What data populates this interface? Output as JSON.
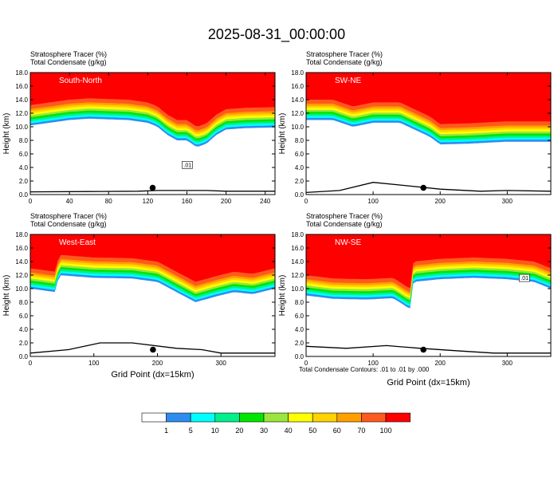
{
  "title": "2025-08-31_00:00:00",
  "panel_header": {
    "line1": "Stratosphere Tracer   (%)",
    "line2": "Total Condensate   (g/kg)"
  },
  "ylabel": "Height (km)",
  "xlabel": "Grid Point (dx=15km)",
  "contour_note": "Total Condensate Contours: .01 to .01 by .000",
  "colorbar": {
    "colors": [
      "#ffffff",
      "#2d8cf0",
      "#00ffff",
      "#00f08c",
      "#00e600",
      "#9be63c",
      "#ffff00",
      "#ffd200",
      "#ffa000",
      "#ff5a1e",
      "#ff0000"
    ],
    "labels": [
      "1",
      "5",
      "10",
      "20",
      "30",
      "40",
      "50",
      "60",
      "70",
      "100"
    ]
  },
  "chart_data": [
    {
      "type": "heatmap",
      "panel": "South-North",
      "label": "South-North",
      "xlim": [
        0,
        250
      ],
      "ylim": [
        0,
        18
      ],
      "xticks": [
        "0",
        "40",
        "80",
        "120",
        "160",
        "200",
        "240"
      ],
      "yticks": [
        "0.0",
        "2.0",
        "4.0",
        "6.0",
        "8.0",
        "10.0",
        "12.0",
        "14.0",
        "16.0",
        "18.0"
      ],
      "tracer_boundary_km": [
        [
          0,
          13.2
        ],
        [
          20,
          13.6
        ],
        [
          40,
          14.0
        ],
        [
          60,
          14.2
        ],
        [
          80,
          14.1
        ],
        [
          100,
          14.0
        ],
        [
          120,
          13.6
        ],
        [
          130,
          13.0
        ],
        [
          140,
          11.8
        ],
        [
          150,
          11.0
        ],
        [
          160,
          11.0
        ],
        [
          170,
          10.0
        ],
        [
          180,
          10.5
        ],
        [
          190,
          11.8
        ],
        [
          200,
          12.6
        ],
        [
          220,
          12.8
        ],
        [
          250,
          12.9
        ]
      ],
      "terrain_km": [
        [
          0,
          0.4
        ],
        [
          60,
          0.45
        ],
        [
          110,
          0.5
        ],
        [
          130,
          0.6
        ],
        [
          150,
          0.6
        ],
        [
          180,
          0.6
        ],
        [
          200,
          0.5
        ],
        [
          250,
          0.5
        ]
      ],
      "marker": {
        "x": 125,
        "y": 1.0
      },
      "contour_label": ".01"
    },
    {
      "type": "heatmap",
      "panel": "SW-NE",
      "label": "SW-NE",
      "xlim": [
        0,
        365
      ],
      "ylim": [
        0,
        18
      ],
      "xticks": [
        "0",
        "100",
        "200",
        "300"
      ],
      "yticks": [
        "0.0",
        "2.0",
        "4.0",
        "6.0",
        "8.0",
        "10.0",
        "12.0",
        "14.0",
        "16.0",
        "18.0"
      ],
      "tracer_boundary_km": [
        [
          0,
          14.0
        ],
        [
          40,
          14.0
        ],
        [
          70,
          13.0
        ],
        [
          100,
          13.6
        ],
        [
          140,
          13.6
        ],
        [
          170,
          12.2
        ],
        [
          185,
          11.5
        ],
        [
          200,
          10.4
        ],
        [
          240,
          10.5
        ],
        [
          300,
          10.8
        ],
        [
          365,
          10.8
        ]
      ],
      "terrain_km": [
        [
          0,
          0.3
        ],
        [
          50,
          0.6
        ],
        [
          100,
          1.8
        ],
        [
          150,
          1.3
        ],
        [
          200,
          0.8
        ],
        [
          260,
          0.5
        ],
        [
          300,
          0.6
        ],
        [
          365,
          0.5
        ]
      ],
      "marker": {
        "x": 175,
        "y": 1.0
      }
    },
    {
      "type": "heatmap",
      "panel": "West-East",
      "label": "West-East",
      "xlim": [
        0,
        385
      ],
      "ylim": [
        0,
        18
      ],
      "xticks": [
        "0",
        "100",
        "200",
        "300"
      ],
      "yticks": [
        "0.0",
        "2.0",
        "4.0",
        "6.0",
        "8.0",
        "10.0",
        "12.0",
        "14.0",
        "16.0",
        "18.0"
      ],
      "tracer_boundary_km": [
        [
          0,
          13.0
        ],
        [
          40,
          12.5
        ],
        [
          45,
          15.0
        ],
        [
          100,
          14.6
        ],
        [
          160,
          14.5
        ],
        [
          200,
          14.0
        ],
        [
          230,
          12.5
        ],
        [
          260,
          11.0
        ],
        [
          290,
          11.8
        ],
        [
          320,
          12.5
        ],
        [
          350,
          12.2
        ],
        [
          385,
          13.0
        ]
      ],
      "terrain_km": [
        [
          0,
          0.5
        ],
        [
          60,
          1.0
        ],
        [
          110,
          2.0
        ],
        [
          160,
          2.0
        ],
        [
          230,
          1.2
        ],
        [
          270,
          1.0
        ],
        [
          300,
          0.5
        ],
        [
          385,
          0.5
        ]
      ],
      "marker": {
        "x": 193,
        "y": 1.0
      }
    },
    {
      "type": "heatmap",
      "panel": "NW-SE",
      "label": "NW-SE",
      "xlim": [
        0,
        365
      ],
      "ylim": [
        0,
        18
      ],
      "xticks": [
        "0",
        "100",
        "200",
        "300"
      ],
      "yticks": [
        "0.0",
        "2.0",
        "4.0",
        "6.0",
        "8.0",
        "10.0",
        "12.0",
        "14.0",
        "16.0",
        "18.0"
      ],
      "tracer_boundary_km": [
        [
          0,
          12.0
        ],
        [
          40,
          11.5
        ],
        [
          90,
          11.4
        ],
        [
          130,
          11.6
        ],
        [
          155,
          10.0
        ],
        [
          160,
          14.0
        ],
        [
          200,
          14.4
        ],
        [
          250,
          14.6
        ],
        [
          300,
          14.4
        ],
        [
          340,
          14.0
        ],
        [
          365,
          13.0
        ]
      ],
      "terrain_km": [
        [
          0,
          1.5
        ],
        [
          60,
          1.2
        ],
        [
          120,
          1.6
        ],
        [
          170,
          1.2
        ],
        [
          230,
          0.8
        ],
        [
          280,
          0.5
        ],
        [
          365,
          0.5
        ]
      ],
      "marker": {
        "x": 175,
        "y": 1.0
      },
      "contour_label": ".01"
    }
  ]
}
